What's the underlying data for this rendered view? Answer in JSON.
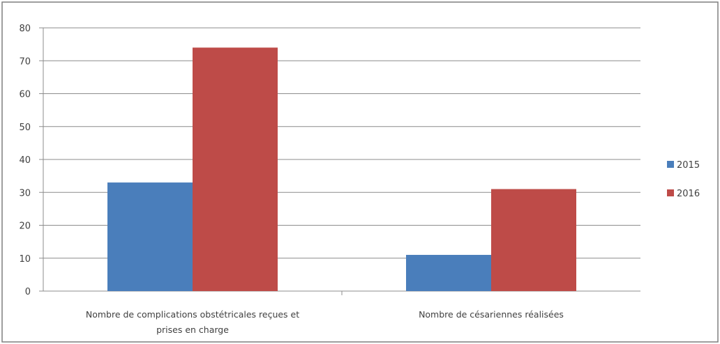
{
  "chart_data": {
    "type": "bar",
    "categories": [
      [
        "Nombre de complications obstétricales reçues et",
        "prises en charge"
      ],
      [
        "Nombre de césariennes réalisées"
      ]
    ],
    "series": [
      {
        "name": "2015",
        "values": [
          33,
          11
        ],
        "color": "#4a7ebb"
      },
      {
        "name": "2016",
        "values": [
          74,
          31
        ],
        "color": "#be4b48"
      }
    ],
    "ylim": [
      0,
      80
    ],
    "yticks": [
      0,
      10,
      20,
      30,
      40,
      50,
      60,
      70,
      80
    ],
    "grid": true,
    "legend": "right",
    "title": "",
    "xlabel": "",
    "ylabel": ""
  }
}
